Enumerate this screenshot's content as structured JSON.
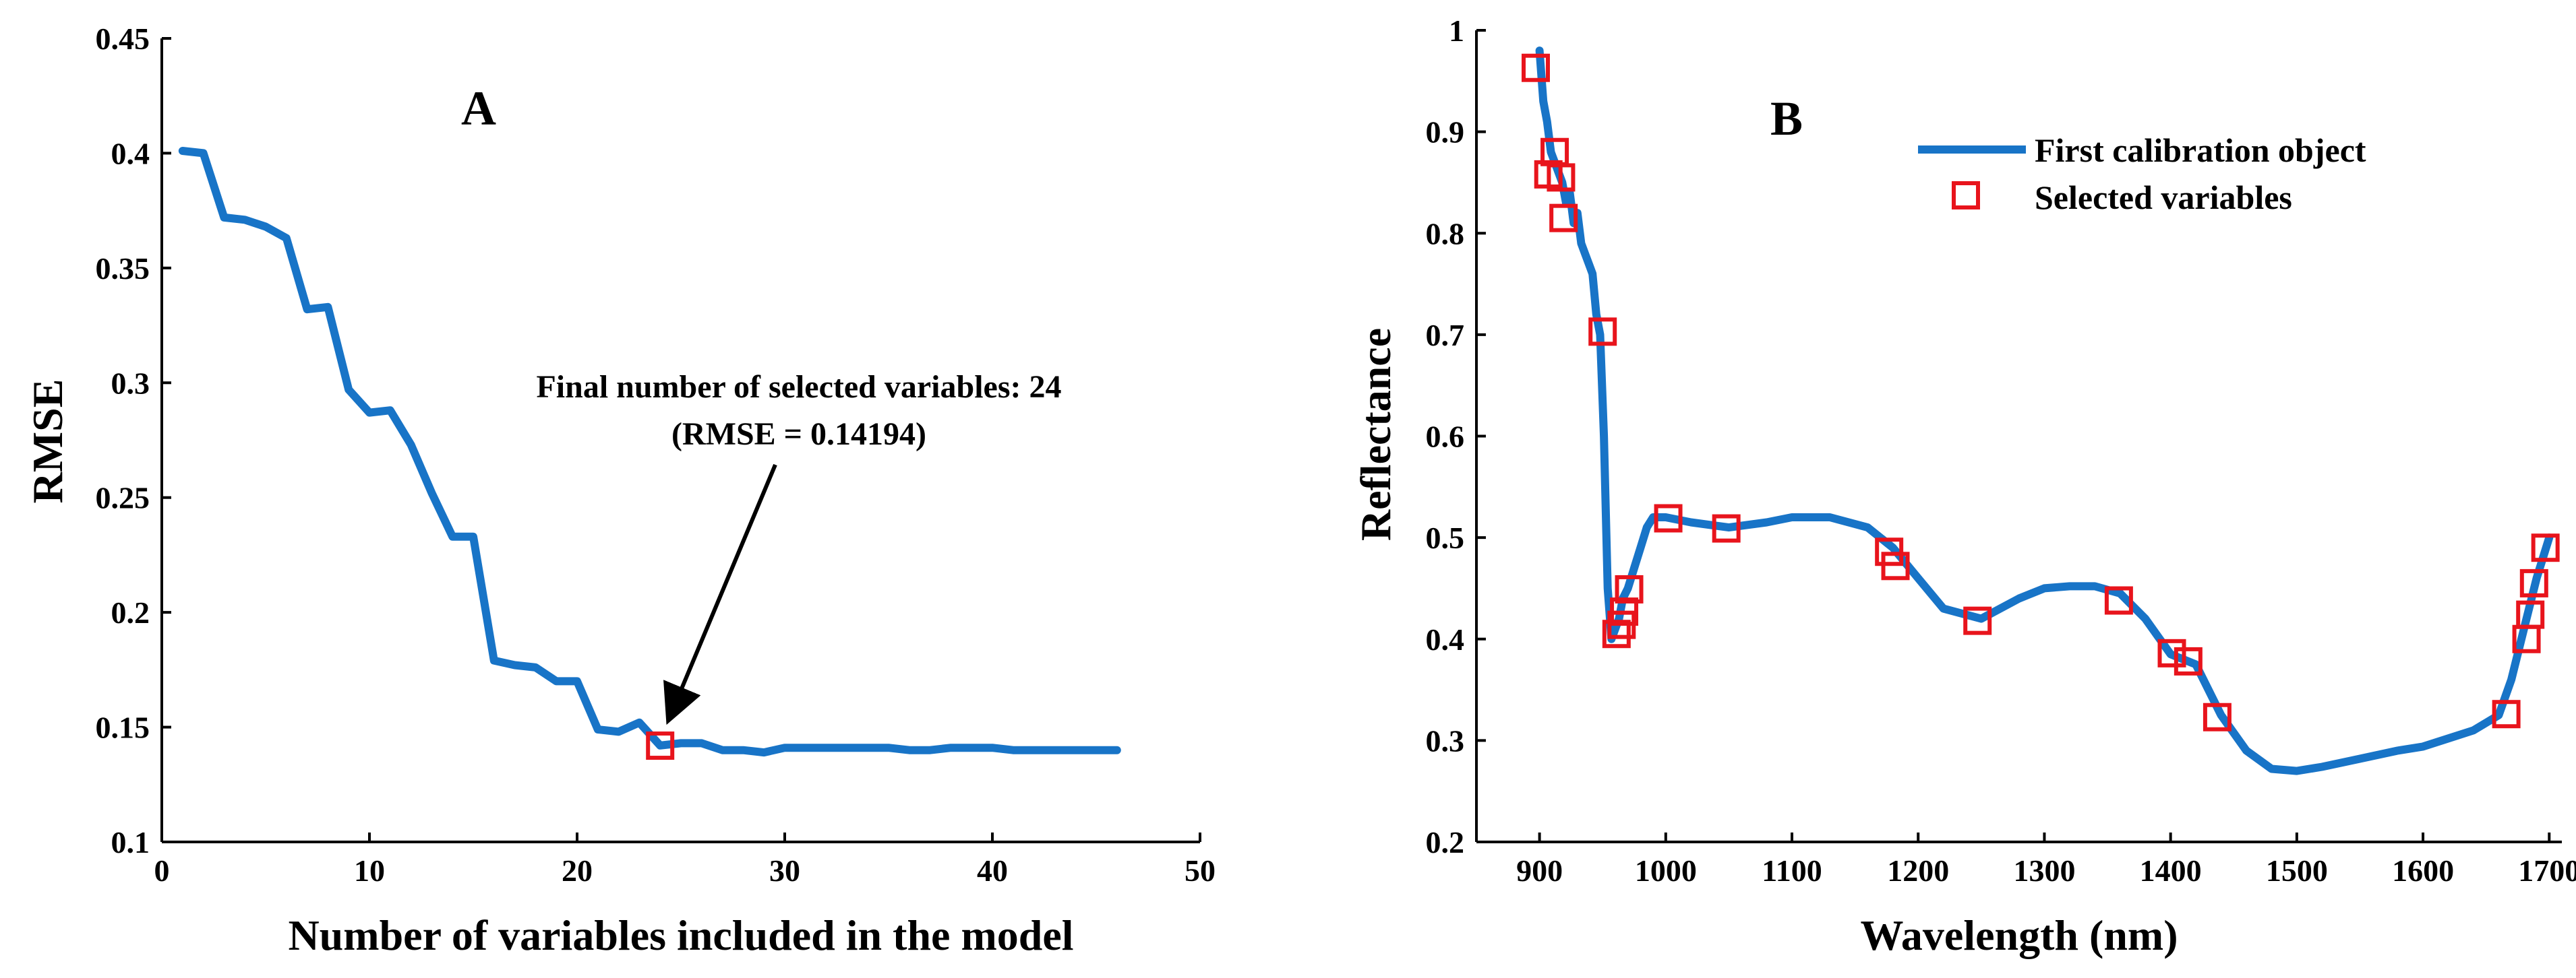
{
  "colors": {
    "series": "#1874c7",
    "marker": "#e8141c",
    "axis": "#000000",
    "background": "#ffffff"
  },
  "chart_data": [
    {
      "id": "A",
      "type": "line",
      "panel_label": "A",
      "xlabel": "Number of variables included in the model",
      "ylabel": "RMSE",
      "xlim": [
        0,
        50
      ],
      "ylim": [
        0.1,
        0.45
      ],
      "xticks": [
        0,
        10,
        20,
        30,
        40,
        50
      ],
      "yticks": [
        0.1,
        0.15,
        0.2,
        0.25,
        0.3,
        0.35,
        0.4,
        0.45
      ],
      "ytick_labels": [
        "0.1",
        "0.15",
        "0.2",
        "0.25",
        "0.3",
        "0.35",
        "0.4",
        "0.45"
      ],
      "series": [
        {
          "name": "RMSE",
          "x": [
            1,
            2,
            3,
            4,
            5,
            6,
            7,
            8,
            9,
            10,
            11,
            12,
            13,
            14,
            15,
            16,
            17,
            18,
            19,
            20,
            21,
            22,
            23,
            24,
            25,
            26,
            27,
            28,
            29,
            30,
            31,
            32,
            33,
            34,
            35,
            36,
            37,
            38,
            39,
            40,
            41,
            42,
            43,
            44,
            45,
            46
          ],
          "values": [
            0.401,
            0.4,
            0.372,
            0.371,
            0.368,
            0.363,
            0.332,
            0.333,
            0.297,
            0.287,
            0.288,
            0.273,
            0.252,
            0.233,
            0.233,
            0.179,
            0.177,
            0.176,
            0.17,
            0.17,
            0.149,
            0.148,
            0.152,
            0.142,
            0.143,
            0.143,
            0.14,
            0.14,
            0.139,
            0.141,
            0.141,
            0.141,
            0.141,
            0.141,
            0.141,
            0.14,
            0.14,
            0.141,
            0.141,
            0.141,
            0.14,
            0.14,
            0.14,
            0.14,
            0.14,
            0.14
          ]
        }
      ],
      "highlight": {
        "x": 24,
        "y": 0.14194
      },
      "annotation": {
        "line1": "Final number of selected variables: 24",
        "line2": "(RMSE = 0.14194)"
      }
    },
    {
      "id": "B",
      "type": "line",
      "panel_label": "B",
      "xlabel": "Wavelength (nm)",
      "ylabel": "Reflectance",
      "xlim": [
        850,
        1710
      ],
      "ylim": [
        0.2,
        1.0
      ],
      "xticks": [
        900,
        1000,
        1100,
        1200,
        1300,
        1400,
        1500,
        1600,
        1700
      ],
      "yticks": [
        0.2,
        0.3,
        0.4,
        0.5,
        0.6,
        0.7,
        0.8,
        0.9,
        1
      ],
      "ytick_labels": [
        "0.2",
        "0.3",
        "0.4",
        "0.5",
        "0.6",
        "0.7",
        "0.8",
        "0.9",
        "1"
      ],
      "series": [
        {
          "name": "First calibration object",
          "x": [
            900,
            903,
            906,
            909,
            912,
            915,
            918,
            921,
            924,
            927,
            930,
            933,
            936,
            939,
            942,
            945,
            948,
            951,
            954,
            957,
            960,
            963,
            966,
            970,
            975,
            980,
            985,
            990,
            1000,
            1020,
            1050,
            1080,
            1100,
            1130,
            1160,
            1180,
            1200,
            1220,
            1250,
            1280,
            1300,
            1320,
            1340,
            1360,
            1380,
            1400,
            1420,
            1440,
            1460,
            1480,
            1500,
            1520,
            1550,
            1580,
            1600,
            1620,
            1640,
            1660,
            1670,
            1680,
            1690,
            1700
          ],
          "values": [
            0.98,
            0.93,
            0.91,
            0.88,
            0.87,
            0.86,
            0.85,
            0.83,
            0.84,
            0.81,
            0.82,
            0.79,
            0.78,
            0.77,
            0.76,
            0.72,
            0.7,
            0.6,
            0.45,
            0.4,
            0.41,
            0.42,
            0.44,
            0.45,
            0.47,
            0.49,
            0.51,
            0.52,
            0.52,
            0.515,
            0.51,
            0.515,
            0.52,
            0.52,
            0.51,
            0.49,
            0.46,
            0.43,
            0.42,
            0.44,
            0.45,
            0.452,
            0.452,
            0.445,
            0.42,
            0.385,
            0.375,
            0.325,
            0.29,
            0.272,
            0.27,
            0.274,
            0.282,
            0.29,
            0.294,
            0.302,
            0.31,
            0.325,
            0.36,
            0.41,
            0.46,
            0.5
          ]
        }
      ],
      "selected_variables": {
        "name": "Selected variables",
        "x": [
          897,
          907,
          912,
          917,
          919,
          950,
          961,
          965,
          967,
          971,
          1002,
          1048,
          1177,
          1182,
          1247,
          1359,
          1401,
          1414,
          1437,
          1666,
          1682,
          1685,
          1688,
          1697
        ],
        "values": [
          0.963,
          0.858,
          0.88,
          0.855,
          0.815,
          0.703,
          0.405,
          0.414,
          0.427,
          0.449,
          0.519,
          0.509,
          0.486,
          0.472,
          0.418,
          0.438,
          0.386,
          0.378,
          0.323,
          0.326,
          0.4,
          0.424,
          0.455,
          0.49
        ]
      },
      "legend": {
        "position": "top-right",
        "entries": [
          "First calibration object",
          "Selected variables"
        ]
      }
    }
  ]
}
